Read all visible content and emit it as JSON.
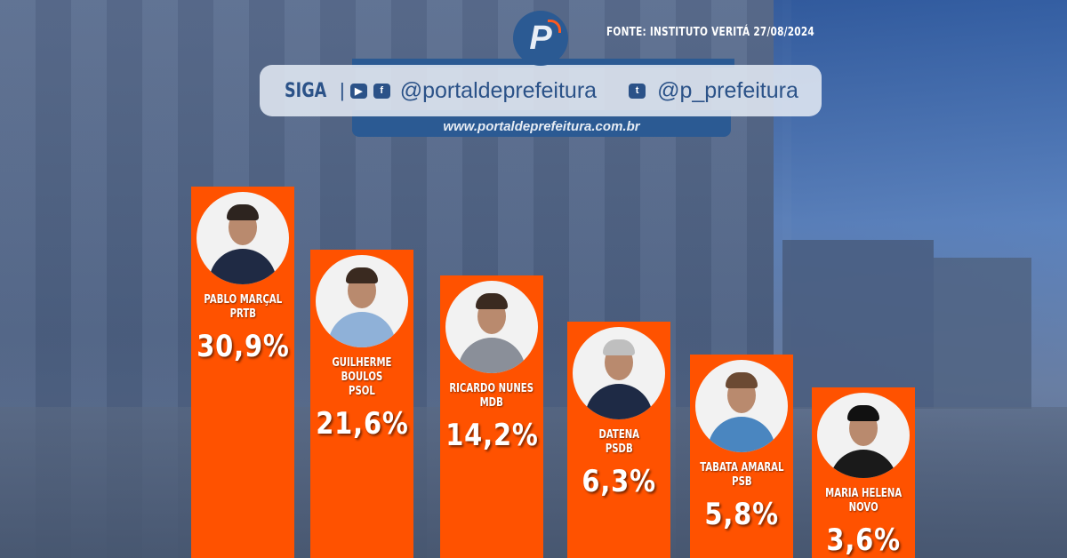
{
  "header": {
    "source": "FONTE: INSTITUTO VERITÁ 27/08/2024",
    "logo_letter": "P",
    "follow_label": "SIGA",
    "separator": "|",
    "handle_main": "@portaldeprefeitura",
    "handle_twitter": "@p_prefeitura",
    "website": "www.portaldeprefeitura.com.br",
    "icons": [
      "youtube-icon",
      "facebook-icon",
      "twitter-icon"
    ]
  },
  "colors": {
    "bar": "#ff5200",
    "brand_blue": "#2b5a93",
    "text": "#ffffff"
  },
  "chart_data": {
    "type": "bar",
    "categories": [
      "PABLO MARÇAL|PRTB",
      "GUILHERME|BOULOS|PSOL",
      "RICARDO NUNES|MDB",
      "DATENA|PSDB",
      "TABATA AMARAL|PSB",
      "MARIA HELENA|NOVO"
    ],
    "candidates": [
      {
        "name": "PABLO MARÇAL",
        "party": "PRTB",
        "value": 30.9,
        "label": "30,9%"
      },
      {
        "name": "GUILHERME BOULOS",
        "party": "PSOL",
        "value": 21.6,
        "label": "21,6%"
      },
      {
        "name": "RICARDO NUNES",
        "party": "MDB",
        "value": 14.2,
        "label": "14,2%"
      },
      {
        "name": "DATENA",
        "party": "PSDB",
        "value": 6.3,
        "label": "6,3%"
      },
      {
        "name": "TABATA AMARAL",
        "party": "PSB",
        "value": 5.8,
        "label": "5,8%"
      },
      {
        "name": "MARIA HELENA",
        "party": "NOVO",
        "value": 3.6,
        "label": "3,6%"
      }
    ],
    "values": [
      30.9,
      21.6,
      14.2,
      6.3,
      5.8,
      3.6
    ],
    "title": "",
    "xlabel": "",
    "ylabel": "",
    "grid": false,
    "legend": "none"
  }
}
